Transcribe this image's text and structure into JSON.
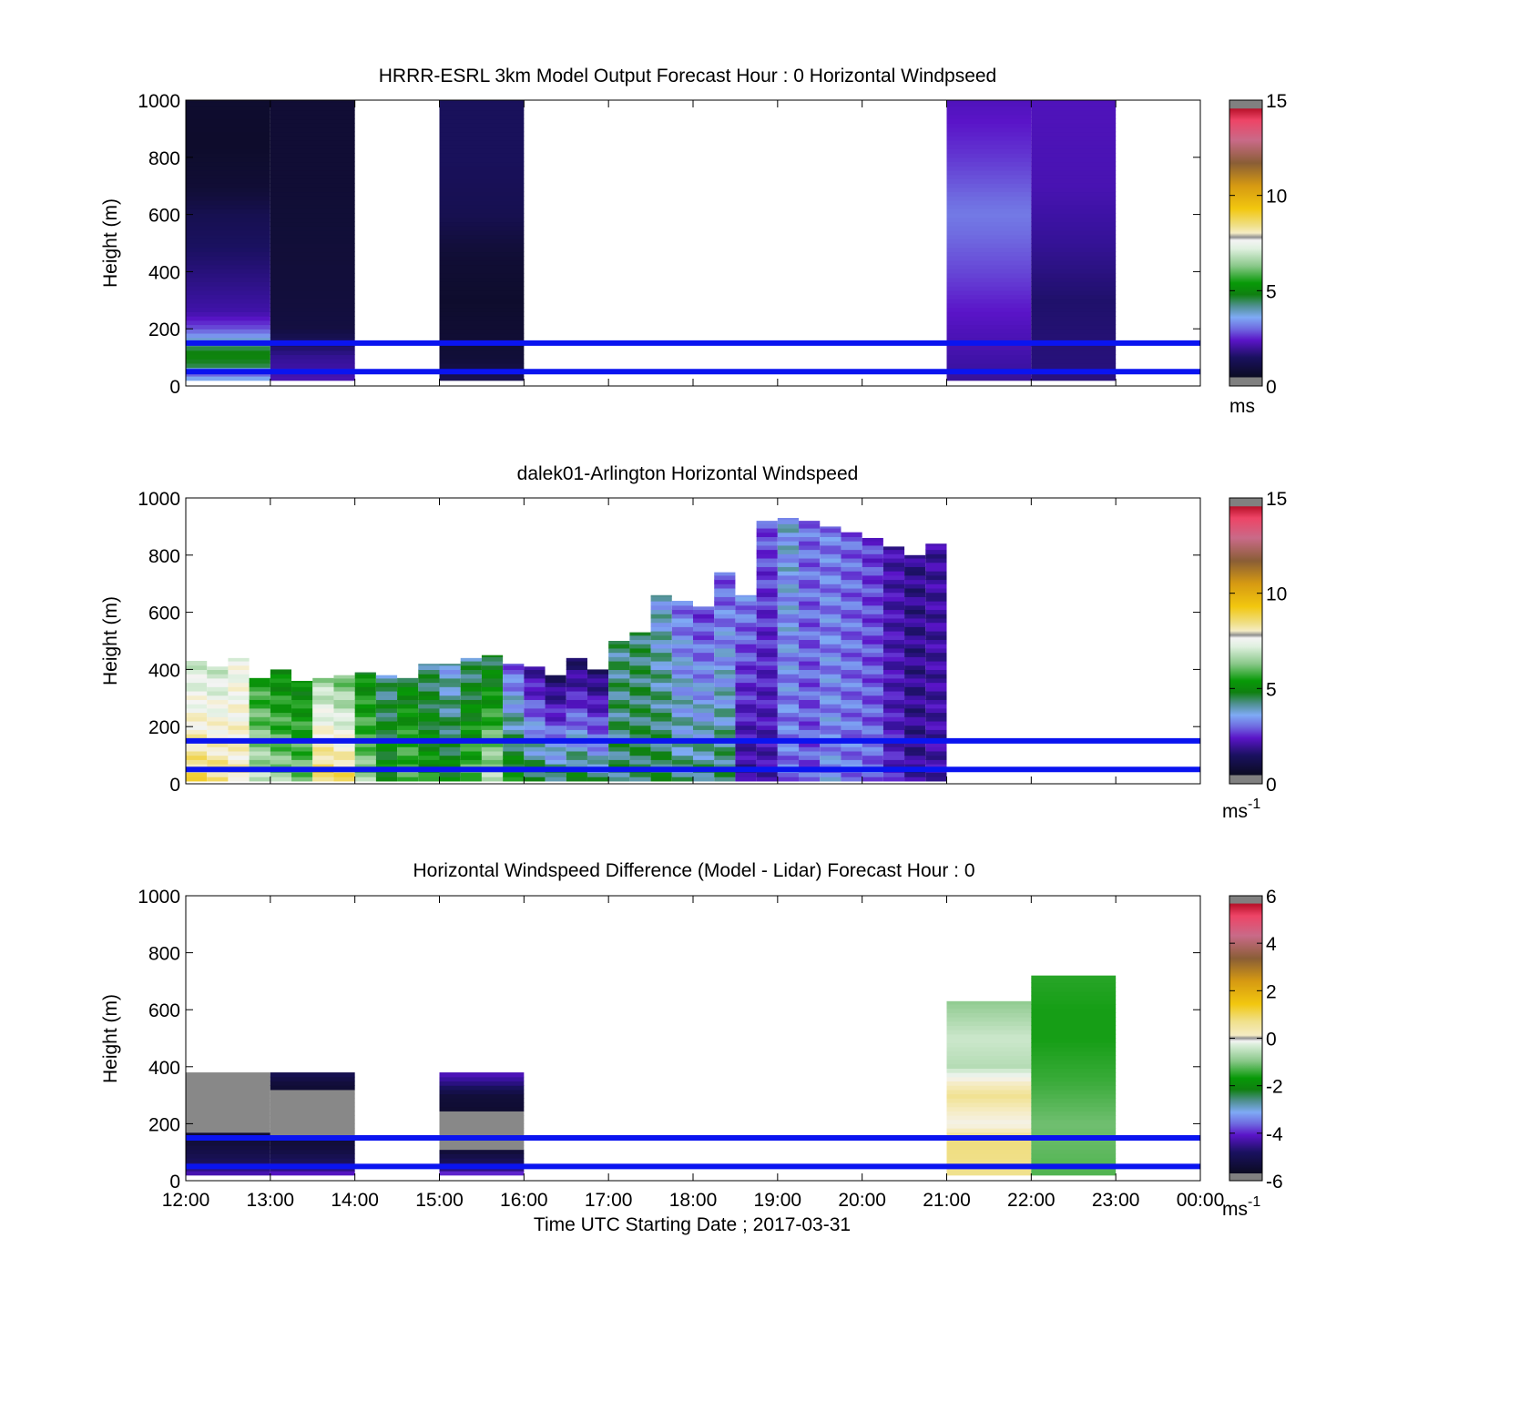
{
  "figure": {
    "xlabel": "Time UTC  Starting Date ; 2017-03-31"
  },
  "chart_data": [
    {
      "type": "heatmap",
      "title": "HRRR-ESRL 3km Model Output   Forecast Hour : 0 Horizontal Windpseed",
      "ylabel": "Height (m)",
      "ylim": [
        0,
        1000
      ],
      "yticks": [
        "0",
        "200",
        "400",
        "600",
        "800",
        "1000"
      ],
      "xlim": [
        12,
        24
      ],
      "colorbar": {
        "min": 0,
        "max": 15,
        "ticks": [
          "0",
          "5",
          "10",
          "15"
        ],
        "unit": "ms",
        "unit_sup": ""
      },
      "reference_lines_m": [
        50,
        150
      ],
      "columns": [
        {
          "t0": 12,
          "t1": 13,
          "z_top": 1000,
          "z_bottom": 20,
          "profile": [
            [
              0,
              5.5
            ],
            [
              40,
              3
            ],
            [
              70,
              4.5
            ],
            [
              110,
              5
            ],
            [
              150,
              4.2
            ],
            [
              200,
              3
            ],
            [
              260,
              2.2
            ],
            [
              350,
              1.9
            ],
            [
              450,
              1.6
            ],
            [
              600,
              1.2
            ],
            [
              700,
              0.6
            ],
            [
              850,
              0.3
            ],
            [
              1000,
              0.4
            ]
          ]
        },
        {
          "t0": 13,
          "t1": 14,
          "z_top": 1000,
          "z_bottom": 20,
          "profile": [
            [
              0,
              2.4
            ],
            [
              50,
              2.2
            ],
            [
              100,
              2
            ],
            [
              200,
              0.9
            ],
            [
              300,
              0.8
            ],
            [
              500,
              0.7
            ],
            [
              700,
              0.6
            ],
            [
              1000,
              0.6
            ]
          ]
        },
        {
          "t0": 15,
          "t1": 16,
          "z_top": 1000,
          "z_bottom": 20,
          "profile": [
            [
              0,
              1.4
            ],
            [
              100,
              0.7
            ],
            [
              300,
              0.35
            ],
            [
              450,
              0.6
            ],
            [
              600,
              1.2
            ],
            [
              800,
              1.4
            ],
            [
              1000,
              1.4
            ]
          ]
        },
        {
          "t0": 21,
          "t1": 22,
          "z_top": 1000,
          "z_bottom": 20,
          "profile": [
            [
              0,
              2
            ],
            [
              200,
              2.4
            ],
            [
              400,
              2.9
            ],
            [
              600,
              3.3
            ],
            [
              800,
              2.8
            ],
            [
              1000,
              2.4
            ]
          ]
        },
        {
          "t0": 22,
          "t1": 23,
          "z_top": 1000,
          "z_bottom": 20,
          "profile": [
            [
              0,
              1.8
            ],
            [
              300,
              1.6
            ],
            [
              500,
              2
            ],
            [
              700,
              2.3
            ],
            [
              1000,
              2.4
            ]
          ]
        }
      ]
    },
    {
      "type": "heatmap",
      "title": "dalek01-Arlington  Horizontal Windspeed",
      "ylabel": "Height (m)",
      "ylim": [
        0,
        1000
      ],
      "yticks": [
        "0",
        "200",
        "400",
        "600",
        "800",
        "1000"
      ],
      "xlim": [
        12,
        24
      ],
      "colorbar": {
        "min": 0,
        "max": 15,
        "ticks": [
          "0",
          "5",
          "10",
          "15"
        ],
        "unit": "ms",
        "unit_sup": "-1"
      },
      "reference_lines_m": [
        50,
        150
      ],
      "lidar_profiles": {
        "resolution_h": 0.25,
        "tops_m": [
          430,
          410,
          440,
          370,
          400,
          360,
          370,
          380,
          390,
          380,
          370,
          420,
          420,
          440,
          450,
          420,
          410,
          380,
          440,
          400,
          500,
          530,
          660,
          640,
          620,
          740,
          660,
          920,
          930,
          920,
          900,
          880,
          860,
          830,
          800,
          840
        ],
        "base_values": [
          8.8,
          8.6,
          8.2,
          6.8,
          6.5,
          6.2,
          9,
          8.8,
          6.5,
          5.2,
          6,
          5.4,
          5,
          6,
          6.8,
          5.2,
          4.8,
          4.6,
          4.8,
          4.4,
          4.4,
          4.5,
          4.6,
          4.3,
          4.4,
          4.5,
          2,
          2.2,
          3.2,
          3,
          3.5,
          3.3,
          3.2,
          2.5,
          2,
          2.2
        ],
        "top_values": [
          7,
          7,
          7.5,
          5.5,
          5,
          5,
          6.5,
          6,
          5,
          4.2,
          4.8,
          4.3,
          3.8,
          4.2,
          4.5,
          3,
          2,
          1.4,
          1.5,
          1.5,
          4.3,
          4.4,
          3.8,
          3.2,
          2.8,
          3,
          3.4,
          3,
          3.8,
          3.2,
          3.3,
          3.1,
          2.8,
          2.2,
          1.9,
          2.1
        ]
      }
    },
    {
      "type": "heatmap",
      "title": "Horizontal Windspeed Difference (Model - Lidar) Forecast Hour : 0",
      "ylabel": "Height (m)",
      "ylim": [
        0,
        1000
      ],
      "yticks": [
        "0",
        "200",
        "400",
        "600",
        "800",
        "1000"
      ],
      "xlim": [
        12,
        24
      ],
      "xticks": [
        "12:00",
        "13:00",
        "14:00",
        "15:00",
        "16:00",
        "17:00",
        "18:00",
        "19:00",
        "20:00",
        "21:00",
        "22:00",
        "23:00",
        "00:00"
      ],
      "colorbar": {
        "min": -6,
        "max": 6,
        "ticks": [
          "-6",
          "-4",
          "-2",
          "0",
          "2",
          "4",
          "6"
        ],
        "unit": "ms",
        "unit_sup": "-1"
      },
      "reference_lines_m": [
        50,
        150
      ],
      "columns": [
        {
          "t0": 12,
          "t1": 13,
          "z_top": 380,
          "z_bottom": 20,
          "profile": [
            [
              0,
              -3.5
            ],
            [
              40,
              -4.5
            ],
            [
              80,
              -5
            ],
            [
              120,
              -5.3
            ],
            [
              165,
              -5.6
            ],
            [
              166,
              -6.5
            ],
            [
              380,
              -6.5
            ]
          ]
        },
        {
          "t0": 13,
          "t1": 14,
          "z_top": 380,
          "z_bottom": 20,
          "profile": [
            [
              0,
              -3
            ],
            [
              40,
              -4.5
            ],
            [
              100,
              -5.2
            ],
            [
              160,
              -5.6
            ],
            [
              161,
              -6.5
            ],
            [
              320,
              -6.5
            ],
            [
              321,
              -5.6
            ],
            [
              350,
              -5.3
            ],
            [
              380,
              -5
            ]
          ]
        },
        {
          "t0": 15,
          "t1": 16,
          "z_top": 380,
          "z_bottom": 20,
          "profile": [
            [
              0,
              -2.5
            ],
            [
              40,
              -4.5
            ],
            [
              110,
              -5.5
            ],
            [
              111,
              -6.5
            ],
            [
              250,
              -6.5
            ],
            [
              251,
              -5.6
            ],
            [
              300,
              -5.4
            ],
            [
              340,
              -4.6
            ],
            [
              380,
              -4
            ]
          ]
        },
        {
          "t0": 21,
          "t1": 22,
          "z_top": 630,
          "z_bottom": 20,
          "profile": [
            [
              0,
              0.8
            ],
            [
              150,
              0.9
            ],
            [
              200,
              0.2
            ],
            [
              300,
              0.8
            ],
            [
              350,
              0.4
            ],
            [
              400,
              -0.6
            ],
            [
              500,
              -0.4
            ],
            [
              630,
              -0.9
            ]
          ]
        },
        {
          "t0": 22,
          "t1": 23,
          "z_top": 720,
          "z_bottom": 20,
          "profile": [
            [
              0,
              -1.3
            ],
            [
              200,
              -1.1
            ],
            [
              350,
              -1.4
            ],
            [
              500,
              -1.6
            ],
            [
              600,
              -1.6
            ],
            [
              720,
              -1.5
            ]
          ]
        }
      ]
    }
  ],
  "colors": {
    "reference_line": "#0a14f0",
    "missing_value": "#888888"
  }
}
